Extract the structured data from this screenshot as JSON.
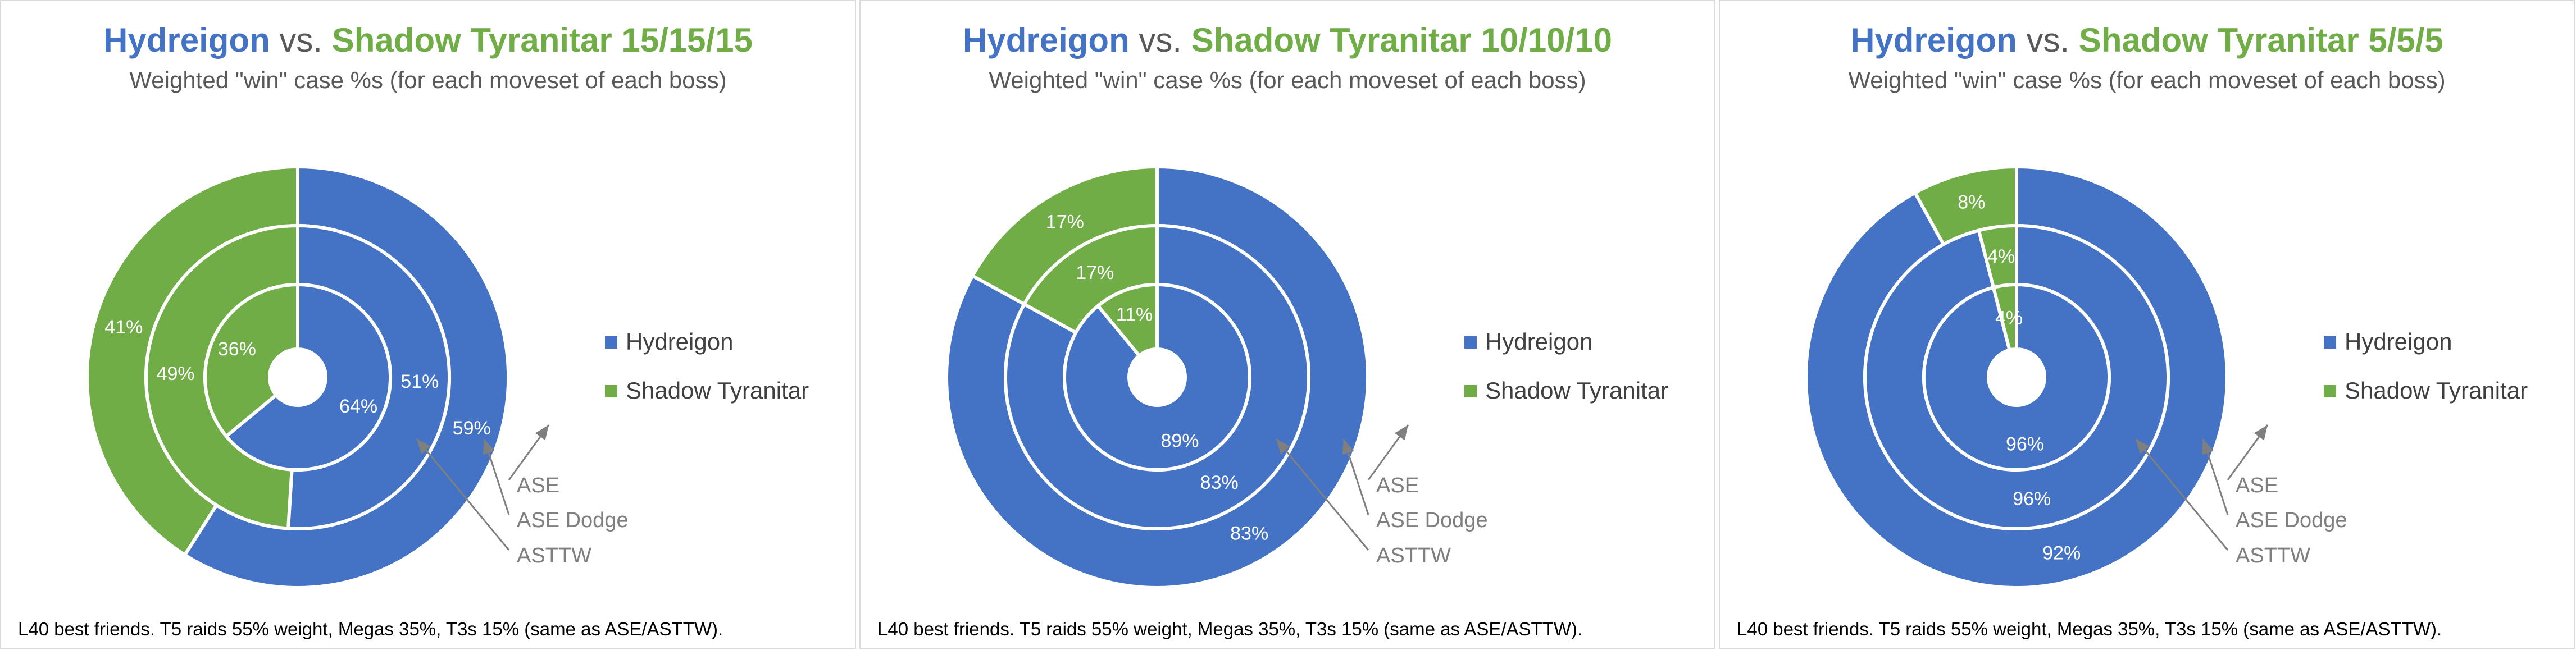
{
  "colors": {
    "hydreigon": "#4472c4",
    "shadow_tyranitar": "#70ad47",
    "title_grey": "#595959",
    "annotation": "#7f7f7f",
    "border": "#d9d9d9"
  },
  "chart_data": [
    {
      "type": "doughnut",
      "title_a": "Hydreigon",
      "title_vs": " vs. ",
      "title_b": "Shadow Tyranitar 15/15/15",
      "subtitle": "Weighted \"win\" case %s (for each moveset of each boss)",
      "categories": [
        "Hydreigon",
        "Shadow Tyranitar"
      ],
      "rings": [
        {
          "name": "ASE",
          "values": [
            59,
            41
          ],
          "labels": [
            "59%",
            "41%"
          ]
        },
        {
          "name": "ASE Dodge",
          "values": [
            51,
            49
          ],
          "labels": [
            "51%",
            "49%"
          ]
        },
        {
          "name": "ASTTW",
          "values": [
            64,
            36
          ],
          "labels": [
            "64%",
            "36%"
          ]
        }
      ],
      "legend": [
        "Hydreigon",
        "Shadow Tyranitar"
      ],
      "legend_position": "right",
      "annotations": [
        "ASE",
        "ASE Dodge",
        "ASTTW"
      ],
      "footnote": "L40 best friends. T5 raids 55% weight, Megas 35%, T3s 15% (same as ASE/ASTTW)."
    },
    {
      "type": "doughnut",
      "title_a": "Hydreigon",
      "title_vs": " vs. ",
      "title_b": "Shadow Tyranitar 10/10/10",
      "subtitle": "Weighted \"win\" case %s (for each moveset of each boss)",
      "categories": [
        "Hydreigon",
        "Shadow Tyranitar"
      ],
      "rings": [
        {
          "name": "ASE",
          "values": [
            83,
            17
          ],
          "labels": [
            "83%",
            "17%"
          ]
        },
        {
          "name": "ASE Dodge",
          "values": [
            83,
            17
          ],
          "labels": [
            "83%",
            "17%"
          ]
        },
        {
          "name": "ASTTW",
          "values": [
            89,
            11
          ],
          "labels": [
            "89%",
            "11%"
          ]
        }
      ],
      "legend": [
        "Hydreigon",
        "Shadow Tyranitar"
      ],
      "legend_position": "right",
      "annotations": [
        "ASE",
        "ASE Dodge",
        "ASTTW"
      ],
      "footnote": "L40 best friends. T5 raids 55% weight, Megas 35%, T3s 15% (same as ASE/ASTTW)."
    },
    {
      "type": "doughnut",
      "title_a": "Hydreigon",
      "title_vs": " vs. ",
      "title_b": "Shadow Tyranitar 5/5/5",
      "subtitle": "Weighted \"win\" case %s (for each moveset of each boss)",
      "categories": [
        "Hydreigon",
        "Shadow Tyranitar"
      ],
      "rings": [
        {
          "name": "ASE",
          "values": [
            92,
            8
          ],
          "labels": [
            "92%",
            "8%"
          ]
        },
        {
          "name": "ASE Dodge",
          "values": [
            96,
            4
          ],
          "labels": [
            "96%",
            "4%"
          ]
        },
        {
          "name": "ASTTW",
          "values": [
            96,
            4
          ],
          "labels": [
            "96%",
            "4%"
          ]
        }
      ],
      "legend": [
        "Hydreigon",
        "Shadow Tyranitar"
      ],
      "legend_position": "right",
      "annotations": [
        "ASE",
        "ASE Dodge",
        "ASTTW"
      ],
      "footnote": "L40 best friends. T5 raids 55% weight, Megas 35%, T3s 15% (same as ASE/ASTTW)."
    }
  ]
}
